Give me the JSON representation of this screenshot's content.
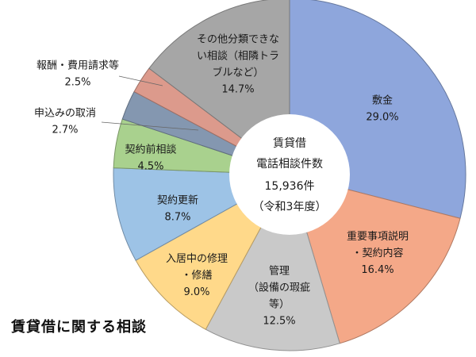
{
  "chart_data": {
    "type": "pie",
    "style": "donut",
    "title": "賃貸借に関する相談",
    "center_label": [
      "賃貸借",
      "電話相談件数",
      "15,936件",
      "（令和3年度）"
    ],
    "total": 15936,
    "unit": "%",
    "slices": [
      {
        "name": "敷金",
        "lines": [
          "敷金"
        ],
        "value": 29.0,
        "value_label": "29.0%",
        "color": "#8ea6dc"
      },
      {
        "name": "重要事項説明・契約内容",
        "lines": [
          "重要事項説明",
          "・契約内容"
        ],
        "value": 16.4,
        "value_label": "16.4%",
        "color": "#f4a888"
      },
      {
        "name": "管理（設備の瑕疵等）",
        "lines": [
          "管理",
          "（設備の瑕疵",
          "等）"
        ],
        "value": 12.5,
        "value_label": "12.5%",
        "color": "#c9c9c9"
      },
      {
        "name": "入居中の修理・修繕",
        "lines": [
          "入居中の修理",
          "・修繕"
        ],
        "value": 9.0,
        "value_label": "9.0%",
        "color": "#ffd98a"
      },
      {
        "name": "契約更新",
        "lines": [
          "契約更新"
        ],
        "value": 8.7,
        "value_label": "8.7%",
        "color": "#9dc3e6"
      },
      {
        "name": "契約前相談",
        "lines": [
          "契約前相談"
        ],
        "value": 4.5,
        "value_label": "4.5%",
        "color": "#a9d18e"
      },
      {
        "name": "申込みの取消",
        "lines": [
          "申込みの取消"
        ],
        "value": 2.7,
        "value_label": "2.7%",
        "color": "#8497b0"
      },
      {
        "name": "報酬・費用請求等",
        "lines": [
          "報酬・費用請求等"
        ],
        "value": 2.5,
        "value_label": "2.5%",
        "color": "#dc9a8c"
      },
      {
        "name": "その他分類できない相談（相隣トラブルなど）",
        "lines": [
          "その他分類できな",
          "い相談（相隣トラ",
          "ブルなど）"
        ],
        "value": 14.7,
        "value_label": "14.7%",
        "color": "#a6a6a6"
      }
    ],
    "legend": "none"
  }
}
